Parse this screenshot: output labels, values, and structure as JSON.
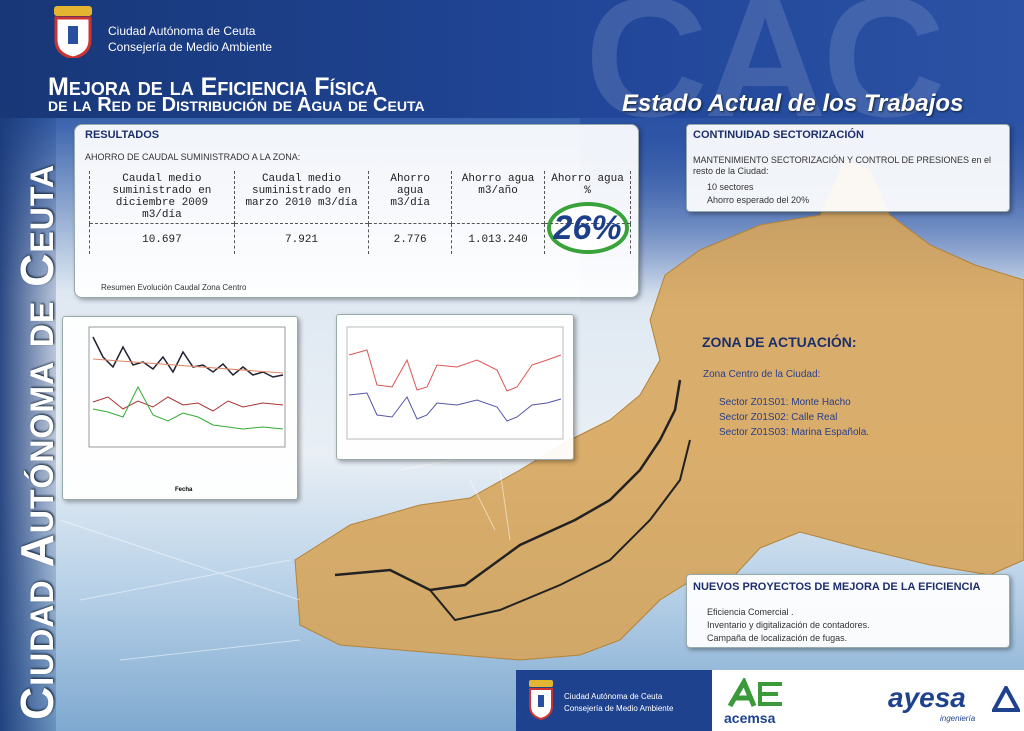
{
  "header": {
    "org": "Ciudad Autónoma de Ceuta",
    "dept": "Consejería de Medio Ambiente",
    "watermark": "CAC",
    "side_title": "Ciudad Autónoma de Ceuta",
    "title_line1": "Mejora de la Eficiencia Física",
    "title_line2": "de la Red de Distribución de Agua de Ceuta",
    "status": "Estado Actual de los Trabajos"
  },
  "results": {
    "title": "RESULTADOS",
    "subtitle": "AHORRO DE CAUDAL SUMINISTRADO A LA ZONA:",
    "table": {
      "headers": [
        "Caudal medio suministrado en diciembre 2009 m3/día",
        "Caudal medio suministrado en marzo 2010 m3/día",
        "Ahorro agua m3/día",
        "Ahorro agua m3/año",
        "Ahorro agua %"
      ],
      "rows": [
        [
          "10.697",
          "7.921",
          "2.776",
          "1.013.240",
          "26%"
        ]
      ]
    },
    "caption": "Resumen Evolución Caudal Zona Centro"
  },
  "chart_thumb": {
    "x_label": "Fecha"
  },
  "continuity": {
    "title": "CONTINUIDAD SECTORIZACIÓN",
    "text": "MANTENIMIENTO SECTORIZACIÓN Y CONTROL DE PRESIONES en el resto de la Ciudad:",
    "items": [
      "10 sectores",
      "Ahorro esperado del 20%"
    ]
  },
  "zone": {
    "title": "ZONA DE ACTUACIÓN:",
    "subtitle": "Zona Centro de la Ciudad:",
    "sectors": [
      "Sector Z01S01: Monte Hacho",
      "Sector Z01S02: Calle Real",
      "Sector Z01S03: Marina Española."
    ]
  },
  "projects": {
    "title": "NUEVOS PROYECTOS DE MEJORA DE LA EFICIENCIA",
    "items": [
      "Eficiencia Comercial .",
      "Inventario y digitalización de contadores.",
      "Campaña de localización de fugas."
    ]
  },
  "footer": {
    "org": "Ciudad Autónoma de Ceuta",
    "dept": "Consejería de Medio Ambiente",
    "acemsa": "acemsa",
    "ayesa": "ayesa",
    "ayesa_sub": "ingeniería"
  }
}
